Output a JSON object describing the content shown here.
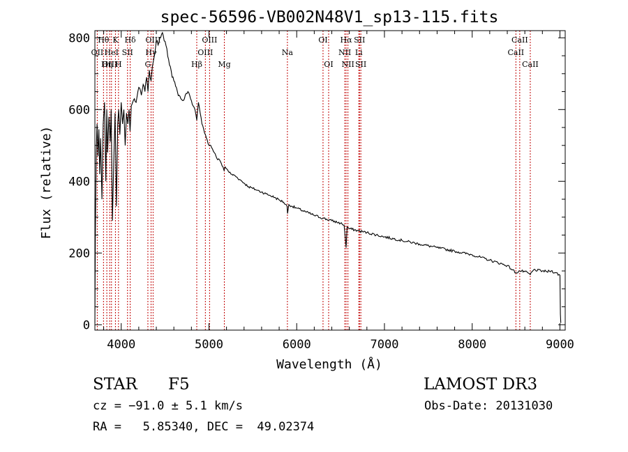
{
  "chart_data": {
    "type": "line",
    "title": "spec-56596-VB002N48V1_sp13-115.fits",
    "xlabel": "Wavelength (Å)",
    "ylabel": "Flux (relative)",
    "xlim": [
      3700,
      9060
    ],
    "ylim": [
      -15,
      820
    ],
    "xticks": [
      4000,
      5000,
      6000,
      7000,
      8000,
      9000
    ],
    "yticks": [
      0,
      200,
      400,
      600,
      800
    ],
    "grid": false,
    "series": [
      {
        "name": "flux",
        "x": [
          3700,
          3705,
          3715,
          3725,
          3735,
          3745,
          3755,
          3765,
          3780,
          3795,
          3810,
          3825,
          3835,
          3845,
          3860,
          3875,
          3885,
          3900,
          3915,
          3930,
          3945,
          3960,
          3970,
          3985,
          4000,
          4015,
          4030,
          4045,
          4060,
          4075,
          4090,
          4101,
          4115,
          4130,
          4150,
          4170,
          4190,
          4210,
          4230,
          4250,
          4270,
          4290,
          4305,
          4320,
          4340,
          4355,
          4370,
          4385,
          4400,
          4420,
          4440,
          4460,
          4480,
          4500,
          4520,
          4540,
          4560,
          4580,
          4600,
          4620,
          4640,
          4660,
          4680,
          4700,
          4720,
          4740,
          4760,
          4780,
          4800,
          4820,
          4840,
          4861,
          4880,
          4900,
          4920,
          4940,
          4960,
          4980,
          5000,
          5020,
          5040,
          5060,
          5080,
          5100,
          5120,
          5140,
          5160,
          5172,
          5183,
          5200,
          5250,
          5300,
          5350,
          5400,
          5450,
          5500,
          5550,
          5600,
          5650,
          5700,
          5750,
          5800,
          5850,
          5890,
          5896,
          5910,
          5950,
          6000,
          6100,
          6200,
          6300,
          6400,
          6500,
          6540,
          6563,
          6575,
          6600,
          6700,
          6800,
          7000,
          7200,
          7400,
          7600,
          7800,
          8000,
          8200,
          8400,
          8498,
          8542,
          8600,
          8662,
          8700,
          8800,
          8850,
          8900,
          8950,
          9000,
          9005,
          9010
        ],
        "values": [
          5,
          240,
          480,
          560,
          470,
          545,
          420,
          520,
          350,
          560,
          620,
          400,
          600,
          480,
          580,
          510,
          600,
          290,
          450,
          590,
          330,
          560,
          600,
          530,
          620,
          560,
          600,
          500,
          590,
          560,
          600,
          540,
          610,
          620,
          630,
          620,
          650,
          660,
          640,
          670,
          650,
          690,
          650,
          710,
          680,
          720,
          740,
          760,
          790,
          780,
          800,
          810,
          805,
          790,
          770,
          740,
          720,
          690,
          680,
          665,
          650,
          640,
          630,
          625,
          630,
          645,
          650,
          640,
          625,
          610,
          600,
          570,
          620,
          590,
          560,
          545,
          530,
          515,
          500,
          500,
          490,
          480,
          470,
          460,
          460,
          450,
          440,
          430,
          440,
          435,
          420,
          415,
          405,
          395,
          385,
          380,
          375,
          370,
          365,
          360,
          355,
          348,
          342,
          330,
          310,
          335,
          330,
          325,
          315,
          305,
          297,
          290,
          283,
          278,
          215,
          273,
          268,
          262,
          257,
          245,
          235,
          225,
          215,
          205,
          195,
          180,
          165,
          145,
          150,
          148,
          140,
          153,
          150,
          148,
          150,
          145,
          138,
          30,
          5
        ]
      }
    ],
    "lines": [
      {
        "label": "Hθ",
        "wl": 3798,
        "row": 0
      },
      {
        "label": "OII",
        "wl": 3727,
        "row": 1
      },
      {
        "label": "OIII",
        "wl": 3869,
        "row": 2
      },
      {
        "label": "Hη",
        "wl": 3836,
        "row": 2
      },
      {
        "label": "HeI",
        "wl": 3889,
        "row": 1
      },
      {
        "label": "K",
        "wl": 3934,
        "row": 0
      },
      {
        "label": "SII",
        "wl": 4072,
        "row": 1
      },
      {
        "label": "H",
        "wl": 3969,
        "row": 2
      },
      {
        "label": "Hδ",
        "wl": 4102,
        "row": 0
      },
      {
        "label": "OIII",
        "wl": 4363,
        "row": 0
      },
      {
        "label": "Hγ",
        "wl": 4340,
        "row": 1
      },
      {
        "label": "G",
        "wl": 4304,
        "row": 2
      },
      {
        "label": "OIII",
        "wl": 5007,
        "row": 0
      },
      {
        "label": "OIII",
        "wl": 4959,
        "row": 1
      },
      {
        "label": "Hβ",
        "wl": 4861,
        "row": 2
      },
      {
        "label": "Mg",
        "wl": 5175,
        "row": 2
      },
      {
        "label": "Na",
        "wl": 5894,
        "row": 1
      },
      {
        "label": "OI",
        "wl": 6300,
        "row": 0
      },
      {
        "label": "OI",
        "wl": 6364,
        "row": 2
      },
      {
        "label": "Hα",
        "wl": 6563,
        "row": 0
      },
      {
        "label": "SII",
        "wl": 6716,
        "row": 0
      },
      {
        "label": "NII",
        "wl": 6548,
        "row": 1
      },
      {
        "label": "Li",
        "wl": 6708,
        "row": 1
      },
      {
        "label": "NII",
        "wl": 6584,
        "row": 2
      },
      {
        "label": "SII",
        "wl": 6731,
        "row": 2
      },
      {
        "label": "CaII",
        "wl": 8542,
        "row": 0
      },
      {
        "label": "CaII",
        "wl": 8498,
        "row": 1
      },
      {
        "label": "CaII",
        "wl": 8662,
        "row": 2
      }
    ]
  },
  "info": {
    "class": "STAR",
    "subclass": "F5",
    "survey": "LAMOST DR3",
    "cz": "cz = −91.0 ± 5.1 km/s",
    "obs_date": "Obs-Date: 20131030",
    "coords": "RA =   5.85340, DEC =  49.02374"
  }
}
